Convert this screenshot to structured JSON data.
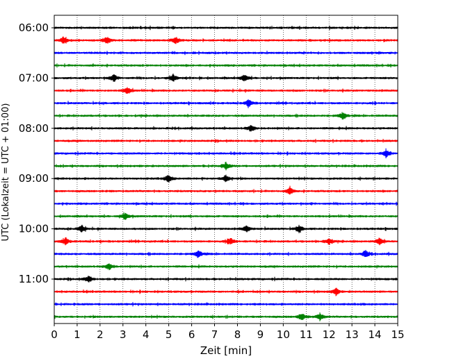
{
  "chart_data": {
    "type": "line",
    "title": "",
    "xlabel": "Zeit  [min]",
    "ylabel": "UTC (Lokalzeit = UTC + 01:00)",
    "x_ticks": [
      "0",
      "1",
      "2",
      "3",
      "4",
      "5",
      "6",
      "7",
      "8",
      "9",
      "10",
      "11",
      "12",
      "13",
      "14",
      "15"
    ],
    "xlim": [
      0,
      15
    ],
    "grid": "vertical dotted lines at each minute",
    "y_ticks": [
      "06:00",
      "07:00",
      "08:00",
      "09:00",
      "10:00",
      "11:00"
    ],
    "y_tick_rows": [
      0,
      4,
      8,
      12,
      16,
      20
    ],
    "row_interval_minutes": 15,
    "start_time": "06:00",
    "row_colors": [
      "#000000",
      "#ff0000",
      "#0000ff",
      "#008000"
    ],
    "rows": [
      {
        "time": "06:00",
        "color": "#000000",
        "events": []
      },
      {
        "time": "06:15",
        "color": "#ff0000",
        "events": [
          0.4,
          2.3,
          5.3
        ]
      },
      {
        "time": "06:30",
        "color": "#0000ff",
        "events": []
      },
      {
        "time": "06:45",
        "color": "#008000",
        "events": []
      },
      {
        "time": "07:00",
        "color": "#000000",
        "events": [
          2.6,
          5.2,
          8.3
        ]
      },
      {
        "time": "07:15",
        "color": "#ff0000",
        "events": [
          3.2
        ]
      },
      {
        "time": "07:30",
        "color": "#0000ff",
        "events": [
          8.5
        ]
      },
      {
        "time": "07:45",
        "color": "#008000",
        "events": [
          12.6
        ]
      },
      {
        "time": "08:00",
        "color": "#000000",
        "events": [
          8.6
        ]
      },
      {
        "time": "08:15",
        "color": "#ff0000",
        "events": []
      },
      {
        "time": "08:30",
        "color": "#0000ff",
        "events": [
          14.5
        ]
      },
      {
        "time": "08:45",
        "color": "#008000",
        "events": [
          7.5
        ]
      },
      {
        "time": "09:00",
        "color": "#000000",
        "events": [
          5.0,
          7.5
        ]
      },
      {
        "time": "09:15",
        "color": "#ff0000",
        "events": [
          10.3
        ]
      },
      {
        "time": "09:30",
        "color": "#0000ff",
        "events": []
      },
      {
        "time": "09:45",
        "color": "#008000",
        "events": [
          3.1
        ]
      },
      {
        "time": "10:00",
        "color": "#000000",
        "events": [
          1.2,
          8.4,
          10.7
        ]
      },
      {
        "time": "10:15",
        "color": "#ff0000",
        "events": [
          0.5,
          7.7,
          12.0,
          14.2
        ]
      },
      {
        "time": "10:30",
        "color": "#0000ff",
        "events": [
          6.3,
          13.6
        ]
      },
      {
        "time": "10:45",
        "color": "#008000",
        "events": [
          2.4
        ]
      },
      {
        "time": "11:00",
        "color": "#000000",
        "events": [
          1.5
        ]
      },
      {
        "time": "11:15",
        "color": "#ff0000",
        "events": [
          12.3
        ]
      },
      {
        "time": "11:30",
        "color": "#0000ff",
        "events": []
      },
      {
        "time": "11:45",
        "color": "#008000",
        "events": [
          10.8,
          11.6
        ]
      }
    ]
  }
}
